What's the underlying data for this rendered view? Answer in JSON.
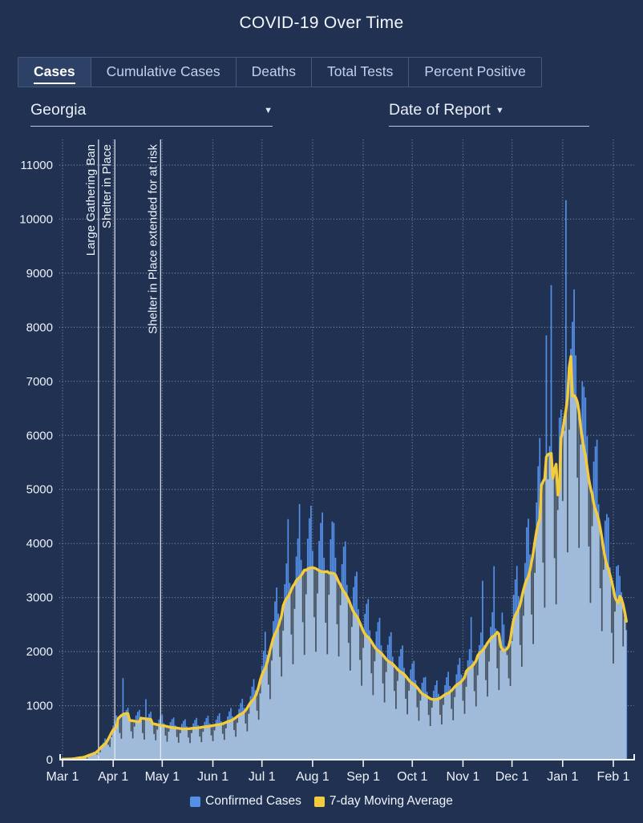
{
  "title": "COVID-19 Over Time",
  "tabs": {
    "items": [
      {
        "label": "Cases",
        "active": true
      },
      {
        "label": "Cumulative Cases",
        "active": false
      },
      {
        "label": "Deaths",
        "active": false
      },
      {
        "label": "Total Tests",
        "active": false
      },
      {
        "label": "Percent Positive",
        "active": false
      }
    ]
  },
  "controls": {
    "region_select": {
      "value": "Georgia",
      "caret": "▼"
    },
    "xaxis_select": {
      "value": "Date of Report",
      "caret": "▼"
    }
  },
  "legend": [
    {
      "label": "Confirmed Cases",
      "color": "#5490e8"
    },
    {
      "label": "7-day Moving Average",
      "color": "#f2cc3d"
    }
  ],
  "colors": {
    "background": "#203152",
    "bar": "#5490e8",
    "bar_below_avg": "#2d3742",
    "area": "#a3bcda",
    "moving_avg": "#f2cc3d",
    "grid": "#c8d6eb",
    "axis": "#eef2f9",
    "event_line": "#eaeef6",
    "label": "#edf2fa"
  },
  "chart_data": {
    "type": "bar",
    "title": "COVID-19 Over Time",
    "xlabel": "Date of Report",
    "ylabel": "",
    "start_date": "2020-03-01",
    "ylim": [
      0,
      11000
    ],
    "y_tick_step": 1000,
    "y_tick_labels": [
      "0",
      "1000",
      "2000",
      "3000",
      "4000",
      "5000",
      "6000",
      "7000",
      "8000",
      "9000",
      "10000",
      "11000"
    ],
    "x_tick_labels": [
      "Mar 1",
      "Apr 1",
      "May 1",
      "Jun 1",
      "Jul 1",
      "Aug 1",
      "Sep 1",
      "Oct 1",
      "Nov 1",
      "Dec 1",
      "Jan 1",
      "Feb 1"
    ],
    "x_tick_day_index": [
      0,
      31,
      61,
      92,
      122,
      153,
      184,
      214,
      245,
      275,
      306,
      337
    ],
    "grid": "dotted",
    "legend_position": "bottom",
    "annotations": [
      {
        "label": "Large Gathering Ban",
        "day_index": 22
      },
      {
        "label": "Shelter in Place",
        "day_index": 32
      },
      {
        "label": "Shelter in Place extended for at risk",
        "day_index": 60
      }
    ],
    "series": [
      {
        "name": "Confirmed Cases",
        "type": "bar",
        "color": "#5490e8",
        "values": [
          6,
          5,
          9,
          14,
          17,
          19,
          19,
          13,
          10,
          23,
          34,
          44,
          54,
          57,
          39,
          33,
          63,
          99,
          124,
          148,
          137,
          112,
          86,
          155,
          262,
          317,
          393,
          371,
          288,
          249,
          431,
          627,
          732,
          819,
          714,
          509,
          403,
          1510,
          847,
          920,
          963,
          790,
          540,
          409,
          627,
          820,
          886,
          922,
          752,
          507,
          387,
          1120,
          784,
          849,
          888,
          718,
          492,
          374,
          571,
          744,
          803,
          832,
          676,
          460,
          348,
          533,
          696,
          751,
          781,
          636,
          434,
          329,
          506,
          663,
          718,
          749,
          617,
          425,
          323,
          507,
          671,
          734,
          774,
          639,
          442,
          340,
          529,
          701,
          770,
          813,
          672,
          464,
          358,
          557,
          739,
          811,
          860,
          713,
          494,
          381,
          595,
          802,
          893,
          957,
          802,
          562,
          440,
          697,
          941,
          1049,
          1126,
          960,
          683,
          540,
          864,
          1176,
          1352,
          1491,
          1284,
          922,
          754,
          1241,
          1736,
          2013,
          2368,
          1943,
          1404,
          1135,
          1849,
          2563,
          2928,
          3185,
          2704,
          1917,
          1554,
          2401,
          3248,
          3630,
          4450,
          3269,
          2331,
          1781,
          2805,
          3758,
          4093,
          4730,
          3696,
          2558,
          1954,
          3075,
          4088,
          4465,
          4698,
          3864,
          2650,
          2012,
          3090,
          4047,
          4380,
          4573,
          3735,
          2549,
          1965,
          3066,
          4077,
          4408,
          4380,
          3738,
          2520,
          1925,
          2873,
          3618,
          3941,
          4038,
          3234,
          2176,
          1663,
          2472,
          3192,
          3395,
          3478,
          2783,
          1860,
          1384,
          2083,
          2697,
          2885,
          2973,
          2394,
          1613,
          1210,
          1836,
          2374,
          2544,
          2624,
          2116,
          1426,
          1074,
          1636,
          2126,
          2281,
          2359,
          1906,
          1287,
          953,
          1473,
          1910,
          2047,
          2112,
          1699,
          1141,
          854,
          1292,
          1669,
          1781,
          1830,
          1470,
          985,
          734,
          1108,
          1422,
          1519,
          1530,
          1255,
          842,
          638,
          978,
          1277,
          1379,
          1466,
          1218,
          846,
          666,
          1029,
          1378,
          1525,
          1626,
          1363,
          954,
          744,
          1173,
          1579,
          1757,
          1882,
          1575,
          1105,
          863,
          1364,
          1837,
          2044,
          2640,
          1832,
          1282,
          1000,
          1577,
          2120,
          2355,
          3310,
          2121,
          1487,
          1184,
          1830,
          2458,
          2730,
          3580,
          2426,
          1706,
          1304,
          2040,
          2722,
          2500,
          2100,
          1950,
          1520,
          1380,
          2210,
          3050,
          3334,
          3584,
          3027,
          2136,
          1733,
          2678,
          3640,
          4300,
          4458,
          3798,
          2700,
          2154,
          3471,
          4760,
          5429,
          5952,
          5093,
          3660,
          2828,
          7850,
          5200,
          5800,
          8780,
          5408,
          3744,
          2888,
          4633,
          6328,
          6480,
          4800,
          6100,
          10350,
          3850,
          6120,
          7600,
          8100,
          8700,
          7480,
          5231,
          3933,
          5844,
          7000,
          6900,
          6700,
          5985,
          3960,
          2915,
          4335,
          5516,
          5795,
          5920,
          4725,
          3186,
          2393,
          3528,
          4424,
          4545,
          4480,
          3560,
          2362,
          1793,
          2754,
          3578,
          3600,
          3400,
          3100,
          2110,
          2620,
          2410
        ]
      },
      {
        "name": "7-day Moving Average",
        "type": "line",
        "color": "#f2cc3d",
        "derived": "7-day moving average of Confirmed Cases"
      }
    ]
  }
}
